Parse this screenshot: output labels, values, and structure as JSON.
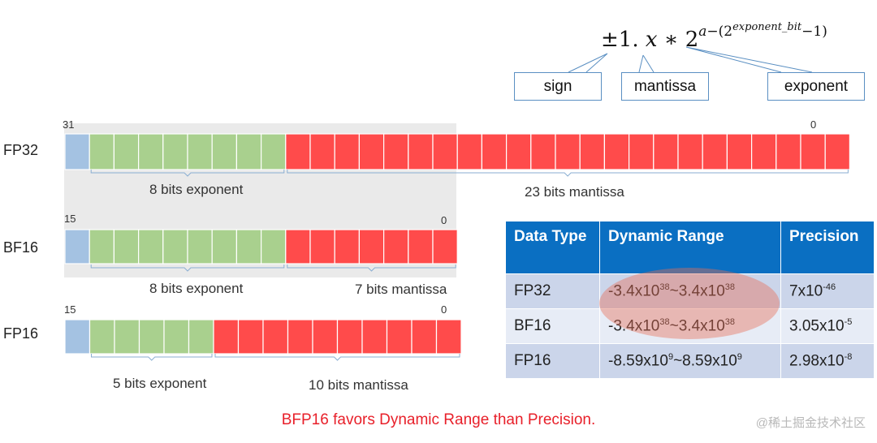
{
  "formula": {
    "base": "±1. 𝑥 ∗ 2",
    "exp_a": "𝑎−(2",
    "exp_bit": "𝑒𝑥𝑝𝑜𝑛𝑒𝑛𝑡_𝑏𝑖𝑡",
    "exp_tail": "−1)"
  },
  "callouts": {
    "sign": "sign",
    "mantissa": "mantissa",
    "exponent": "exponent"
  },
  "formats": [
    {
      "name": "FP32",
      "high_bit": "31",
      "low_bit": "0",
      "sign_bits": 1,
      "exponent_bits": 8,
      "mantissa_bits": 23,
      "exponent_label": "8 bits exponent",
      "mantissa_label": "23 bits mantissa"
    },
    {
      "name": "BF16",
      "high_bit": "15",
      "low_bit": "0",
      "sign_bits": 1,
      "exponent_bits": 8,
      "mantissa_bits": 7,
      "exponent_label": "8 bits exponent",
      "mantissa_label": "7 bits mantissa"
    },
    {
      "name": "FP16",
      "high_bit": "15",
      "low_bit": "0",
      "sign_bits": 1,
      "exponent_bits": 5,
      "mantissa_bits": 10,
      "exponent_label": "5 bits exponent",
      "mantissa_label": "10 bits mantissa"
    }
  ],
  "colors": {
    "sign": "#a4c2e2",
    "exponent": "#a9d08e",
    "mantissa": "#ff4b4b",
    "table_header": "#0a6fc2",
    "footer": "#e8202a"
  },
  "table": {
    "headers": [
      "Data Type",
      "Dynamic Range",
      "Precision"
    ],
    "rows": [
      {
        "type": "FP32",
        "range_a": "-3.4x10",
        "range_a_exp": "38",
        "range_b": "~3.4x10",
        "range_b_exp": "38",
        "prec": "7x10",
        "prec_exp": "-46"
      },
      {
        "type": "BF16",
        "range_a": "-3.4x10",
        "range_a_exp": "38",
        "range_b": "~3.4x10",
        "range_b_exp": "38",
        "prec": "3.05x10",
        "prec_exp": "-5"
      },
      {
        "type": "FP16",
        "range_a": "-8.59x10",
        "range_a_exp": "9",
        "range_b": "~8.59x10",
        "range_b_exp": "9",
        "prec": "2.98x10",
        "prec_exp": "-8"
      }
    ]
  },
  "footer": "BFP16 favors Dynamic Range than Precision.",
  "watermark": "@稀土掘金技术社区"
}
